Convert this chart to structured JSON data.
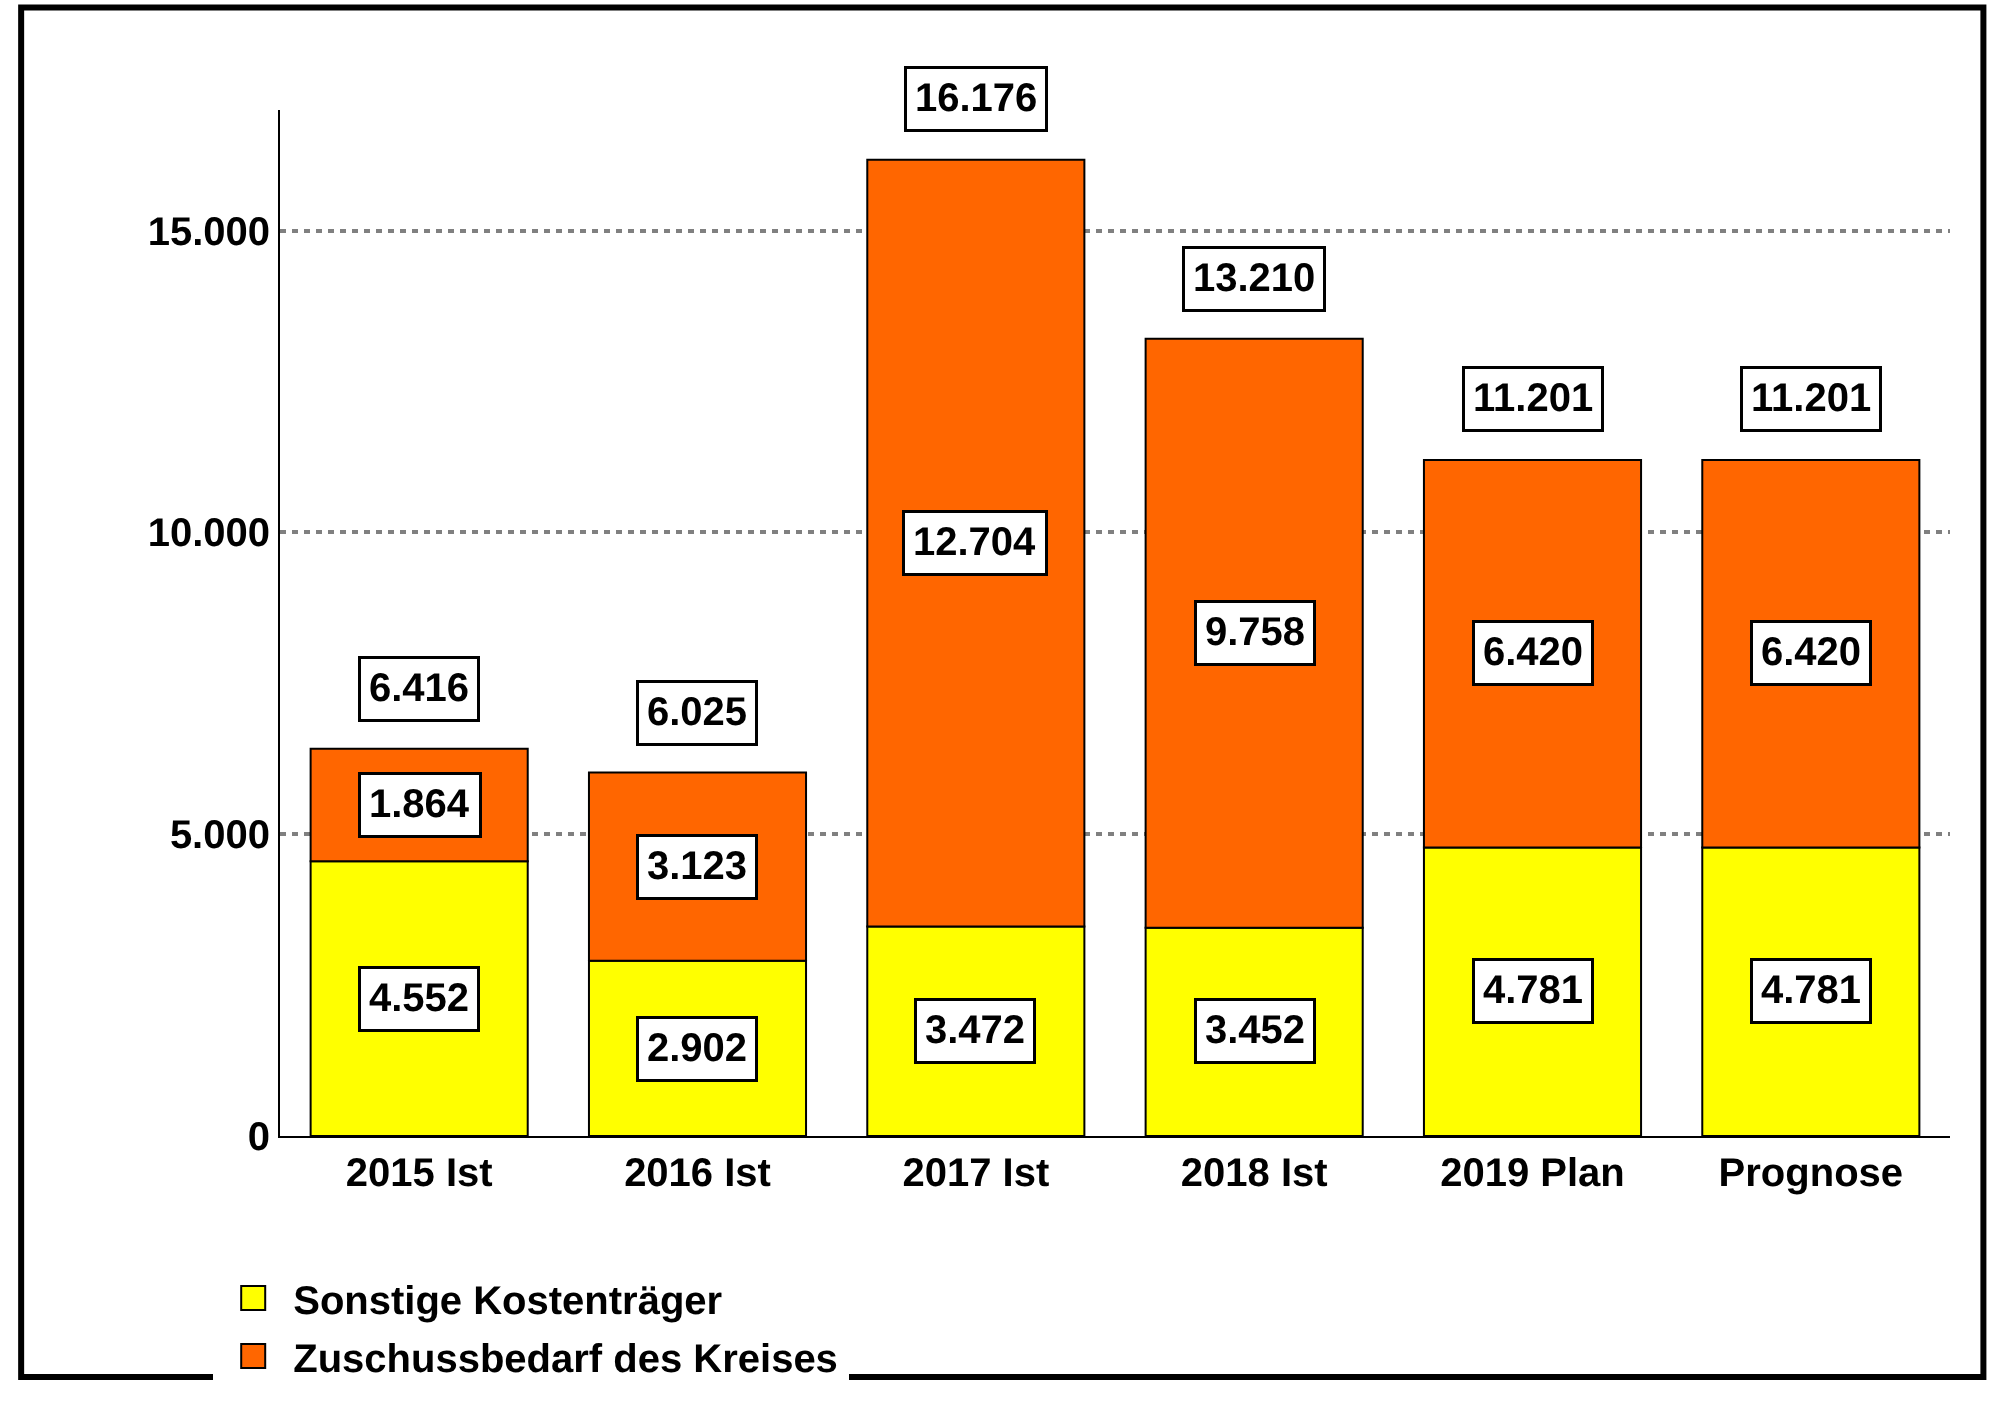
{
  "chart_data": {
    "type": "bar",
    "stacked": true,
    "categories": [
      "2015 Ist",
      "2016 Ist",
      "2017 Ist",
      "2018 Ist",
      "2019 Plan",
      "Prognose"
    ],
    "series": [
      {
        "name": "Sonstige Kostenträger",
        "color": "#ffff00",
        "values": [
          4552,
          2902,
          3472,
          3452,
          4781,
          4781
        ],
        "value_labels": [
          "4.552",
          "2.902",
          "3.472",
          "3.452",
          "4.781",
          "4.781"
        ]
      },
      {
        "name": "Zuschussbedarf des Kreises",
        "color": "#ff6600",
        "values": [
          1864,
          3123,
          12704,
          9758,
          6420,
          6420
        ],
        "value_labels": [
          "1.864",
          "3.123",
          "12.704",
          "9.758",
          "6.420",
          "6.420"
        ]
      }
    ],
    "totals": [
      "6.416",
      "6.025",
      "16.176",
      "13.210",
      "11.201",
      "11.201"
    ],
    "ylim": [
      0,
      17000
    ],
    "yticks": [
      0,
      {
        "value": 5000,
        "label": "5.000"
      },
      {
        "value": 10000,
        "label": "10.000"
      },
      {
        "value": 15000,
        "label": "15.000"
      }
    ],
    "grid": "y",
    "legend": "bottom left"
  }
}
